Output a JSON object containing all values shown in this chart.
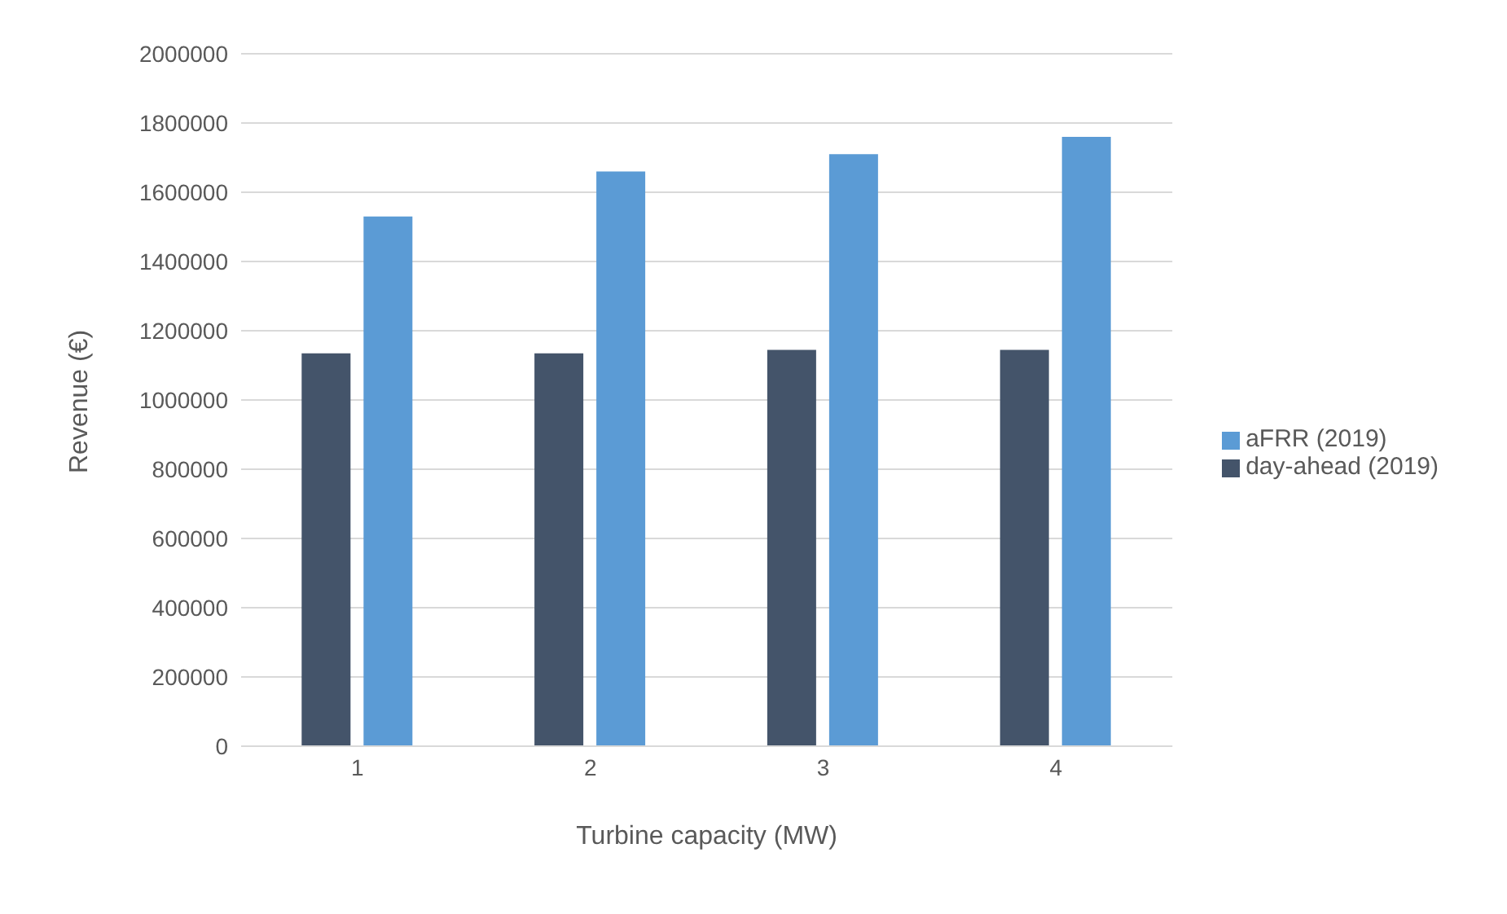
{
  "chart_data": {
    "type": "bar",
    "xlabel": "Turbine capacity (MW)",
    "ylabel": "Revenue (€)",
    "categories": [
      "1",
      "2",
      "3",
      "4"
    ],
    "series": [
      {
        "name": "day-ahead (2019)",
        "color": "#44546a",
        "values": [
          1135000,
          1135000,
          1145000,
          1145000
        ]
      },
      {
        "name": "aFRR (2019)",
        "color": "#5b9bd5",
        "values": [
          1530000,
          1660000,
          1710000,
          1760000
        ]
      }
    ],
    "ylim": [
      0,
      2000000
    ],
    "yticks": [
      0,
      200000,
      400000,
      600000,
      800000,
      1000000,
      1200000,
      1400000,
      1600000,
      1800000,
      2000000
    ],
    "grid": "y",
    "legend": "right"
  }
}
